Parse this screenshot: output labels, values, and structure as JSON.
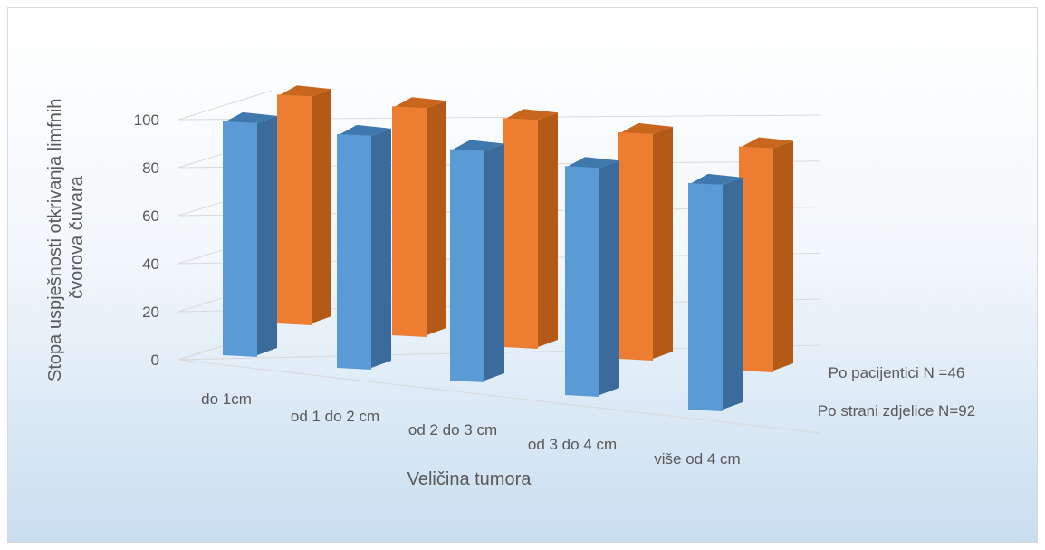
{
  "chart_data": {
    "type": "bar",
    "subtype": "3d-column",
    "title": "",
    "xlabel": "Veličina tumora",
    "ylabel_lines": [
      "Stopa uspješnosti otkrivanja limfnih",
      "čvorova čuvara"
    ],
    "categories": [
      "do 1cm",
      "od 1 do 2 cm",
      "od 2 do 3 cm",
      "od 3 do 4 cm",
      "više od 4 cm"
    ],
    "yticks": [
      "0",
      "20",
      "40",
      "60",
      "80",
      "100"
    ],
    "ylim": [
      0,
      100
    ],
    "series": [
      {
        "name": "Po strani zdjelice N=92",
        "values": [
          97,
          97,
          96,
          95,
          94
        ],
        "color": "#5b9bd5"
      },
      {
        "name": "Po pacijentici N =46",
        "values": [
          95,
          95,
          95,
          94,
          93
        ],
        "color": "#ed7d31"
      }
    ],
    "grid": true,
    "legend": "series labels on depth axis, right"
  }
}
